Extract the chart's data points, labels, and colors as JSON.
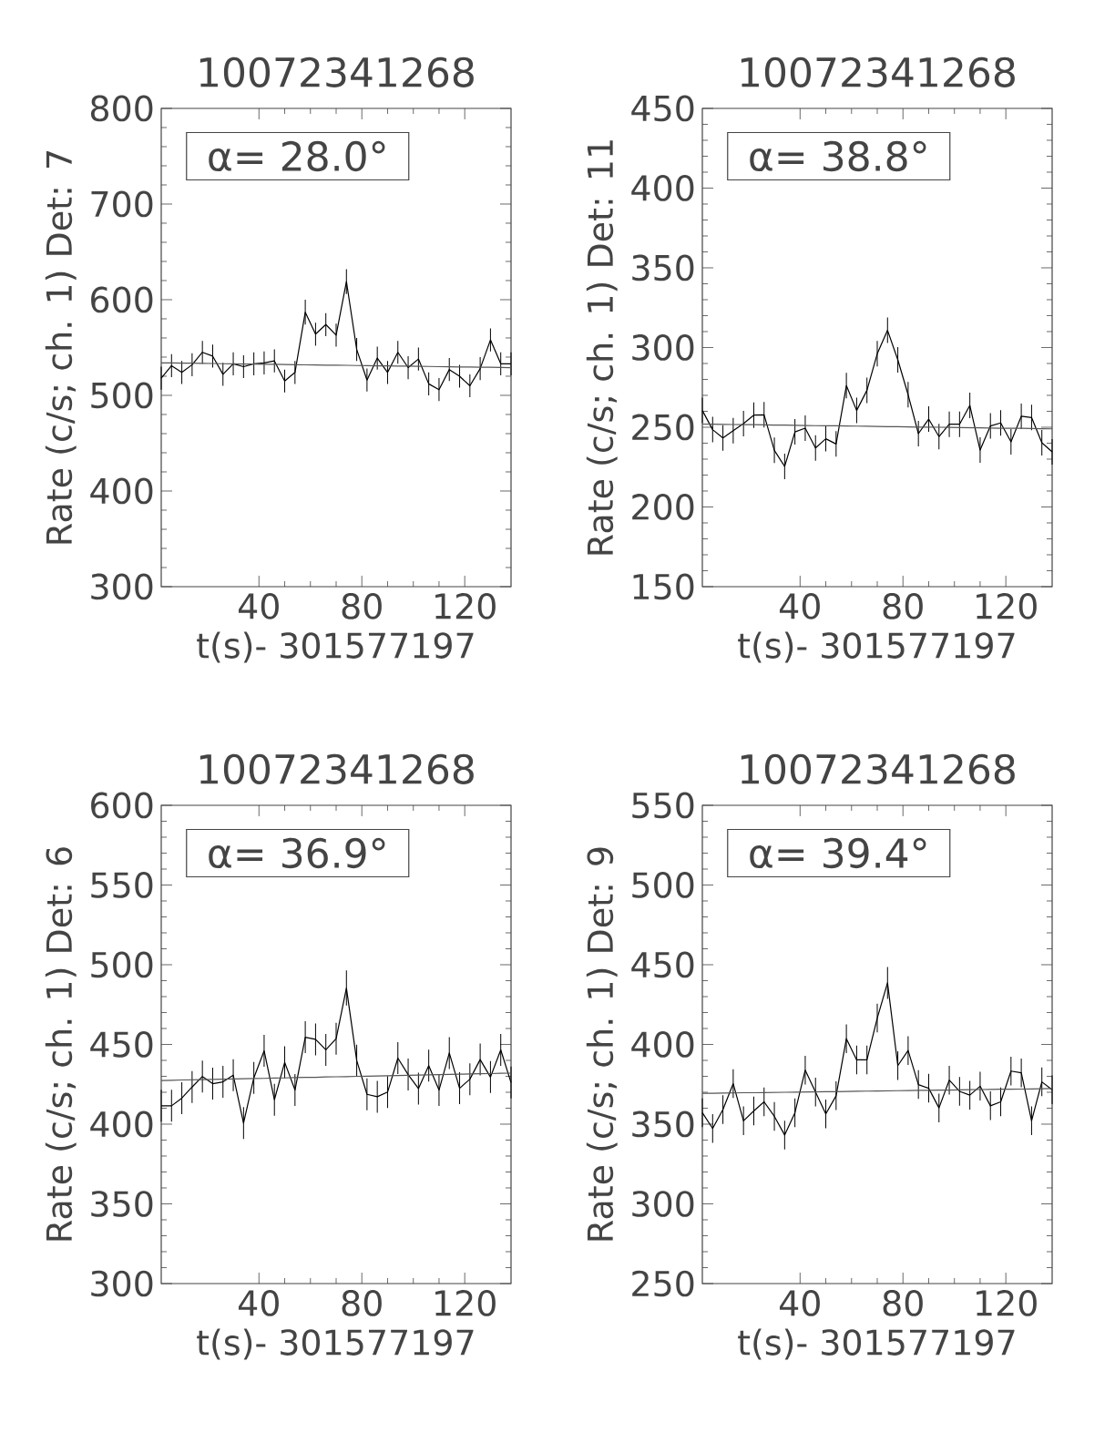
{
  "chart_data": [
    {
      "type": "line",
      "title": "10072341268",
      "xlabel": "t(s)- 301577197",
      "ylabel": "Rate (c/s; ch. 1) Det: 7",
      "annotations": [
        "α= 28.0°"
      ],
      "xlim": [
        2,
        138
      ],
      "xticks": [
        40,
        80,
        120
      ],
      "ylim": [
        300,
        800
      ],
      "yticks": [
        300,
        400,
        500,
        600,
        700,
        800
      ],
      "x": [
        2,
        6,
        10,
        14,
        18,
        22,
        26,
        30,
        34,
        38,
        42,
        46,
        50,
        54,
        58,
        62,
        66,
        70,
        74,
        78,
        82,
        86,
        90,
        94,
        98,
        102,
        106,
        110,
        114,
        118,
        122,
        126,
        130,
        134,
        138
      ],
      "series": [
        {
          "color": "#000000",
          "values": [
            518,
            531,
            524,
            532,
            545,
            541,
            522,
            533,
            530,
            533,
            534,
            536,
            515,
            524,
            587,
            564,
            574,
            563,
            619,
            548,
            516,
            539,
            524,
            545,
            529,
            538,
            512,
            506,
            527,
            520,
            510,
            528,
            558,
            533,
            533
          ],
          "errors": [
            12,
            12,
            12,
            12,
            12,
            12,
            12,
            12,
            12,
            12,
            12,
            12,
            12,
            12,
            13,
            12,
            12,
            12,
            13,
            12,
            12,
            12,
            12,
            12,
            12,
            12,
            12,
            12,
            12,
            12,
            12,
            12,
            12,
            12,
            12
          ]
        },
        {
          "color": "#555555",
          "values": [
            534.0,
            533.9,
            533.7,
            533.6,
            533.4,
            533.3,
            533.1,
            533.0,
            532.8,
            532.7,
            532.5,
            532.4,
            532.2,
            532.1,
            531.9,
            531.8,
            531.6,
            531.5,
            531.4,
            531.2,
            531.1,
            530.9,
            530.8,
            530.6,
            530.5,
            530.3,
            530.2,
            530.0,
            529.9,
            529.7,
            529.6,
            529.4,
            529.3,
            529.1,
            529.0
          ]
        }
      ]
    },
    {
      "type": "line",
      "title": "10072341268",
      "xlabel": "t(s)- 301577197",
      "ylabel": "Rate (c/s; ch. 1) Det: 11",
      "annotations": [
        "α= 38.8°"
      ],
      "xlim": [
        2,
        138
      ],
      "xticks": [
        40,
        80,
        120
      ],
      "ylim": [
        150,
        450
      ],
      "yticks": [
        150,
        200,
        250,
        300,
        350,
        400,
        450
      ],
      "x": [
        2,
        6,
        10,
        14,
        18,
        22,
        26,
        30,
        34,
        38,
        42,
        46,
        50,
        54,
        58,
        62,
        66,
        70,
        74,
        78,
        82,
        86,
        90,
        94,
        98,
        102,
        106,
        110,
        114,
        118,
        122,
        126,
        130,
        134,
        138
      ],
      "series": [
        {
          "color": "#000000",
          "values": [
            260.5,
            248.5,
            243.3,
            247.9,
            252.3,
            257.6,
            257.8,
            235.5,
            225.4,
            247.1,
            249.4,
            237,
            242.8,
            239.5,
            276.1,
            260.5,
            273.2,
            296.1,
            310.8,
            292.3,
            270.4,
            246,
            255.1,
            244.1,
            251.9,
            251.9,
            263.7,
            235.7,
            250.8,
            252.7,
            240.9,
            256.9,
            256.1,
            240.3,
            234.6
          ],
          "errors": [
            8,
            8,
            8,
            8,
            8,
            8,
            8,
            8,
            8,
            8,
            8,
            8,
            8,
            8,
            8,
            8,
            8,
            8,
            8,
            8,
            8,
            8,
            8,
            8,
            8,
            8,
            8,
            8,
            8,
            8,
            8,
            8,
            8,
            8,
            8
          ]
        },
        {
          "color": "#555555",
          "values": [
            252.0,
            251.9,
            251.8,
            251.7,
            251.6,
            251.6,
            251.5,
            251.4,
            251.3,
            251.2,
            251.1,
            251.0,
            250.9,
            250.9,
            250.8,
            250.7,
            250.6,
            250.5,
            250.4,
            250.3,
            250.2,
            250.1,
            250.1,
            250.0,
            249.9,
            249.8,
            249.7,
            249.6,
            249.5,
            249.4,
            249.4,
            249.3,
            249.2,
            249.1,
            249.0
          ]
        }
      ]
    },
    {
      "type": "line",
      "title": "10072341268",
      "xlabel": "t(s)- 301577197",
      "ylabel": "Rate (c/s; ch. 1) Det: 6",
      "annotations": [
        "α= 36.9°"
      ],
      "xlim": [
        2,
        138
      ],
      "xticks": [
        40,
        80,
        120
      ],
      "ylim": [
        300,
        600
      ],
      "yticks": [
        300,
        350,
        400,
        450,
        500,
        550,
        600
      ],
      "x": [
        2,
        6,
        10,
        14,
        18,
        22,
        26,
        30,
        34,
        38,
        42,
        46,
        50,
        54,
        58,
        62,
        66,
        70,
        74,
        78,
        82,
        86,
        90,
        94,
        98,
        102,
        106,
        110,
        114,
        118,
        122,
        126,
        130,
        134,
        138
      ],
      "series": [
        {
          "color": "#000000",
          "values": [
            411.5,
            411.5,
            416.3,
            423.3,
            429.9,
            425.4,
            426.5,
            430.7,
            400.7,
            429,
            446,
            415.3,
            438.8,
            421.4,
            454.5,
            453.2,
            446.6,
            453.6,
            485.4,
            439.9,
            418.7,
            417.2,
            420.1,
            441.4,
            431.1,
            422.3,
            436.7,
            421.4,
            444.6,
            422.5,
            428.2,
            440.5,
            429.5,
            446.6,
            426.1
          ],
          "errors": [
            10,
            10,
            10,
            10,
            10,
            10,
            10,
            10,
            10,
            10,
            10,
            10,
            10,
            10,
            10,
            10,
            10,
            10,
            11,
            10,
            10,
            10,
            10,
            10,
            10,
            10,
            10,
            10,
            10,
            10,
            10,
            10,
            10,
            10,
            10
          ]
        },
        {
          "color": "#555555",
          "values": [
            427.4,
            427.5,
            427.7,
            427.8,
            427.9,
            428.1,
            428.2,
            428.3,
            428.5,
            428.6,
            428.7,
            428.9,
            429.0,
            429.2,
            429.3,
            429.4,
            429.6,
            429.7,
            429.8,
            430.0,
            430.1,
            430.2,
            430.4,
            430.5,
            430.6,
            430.8,
            430.9,
            431.1,
            431.2,
            431.3,
            431.5,
            431.6,
            431.7,
            431.9,
            432.0
          ]
        }
      ]
    },
    {
      "type": "line",
      "title": "10072341268",
      "xlabel": "t(s)- 301577197",
      "ylabel": "Rate (c/s; ch. 1) Det: 9",
      "annotations": [
        "α= 39.4°"
      ],
      "xlim": [
        2,
        138
      ],
      "xticks": [
        40,
        80,
        120
      ],
      "ylim": [
        250,
        550
      ],
      "yticks": [
        250,
        300,
        350,
        400,
        450,
        500,
        550
      ],
      "x": [
        2,
        6,
        10,
        14,
        18,
        22,
        26,
        30,
        34,
        38,
        42,
        46,
        50,
        54,
        58,
        62,
        66,
        70,
        74,
        78,
        82,
        86,
        90,
        94,
        98,
        102,
        106,
        110,
        114,
        118,
        122,
        126,
        130,
        134,
        138
      ],
      "series": [
        {
          "color": "#000000",
          "values": [
            357.2,
            347.3,
            359.1,
            375.4,
            352.1,
            358.3,
            364,
            354.9,
            343.2,
            357.2,
            383.9,
            370.1,
            356.4,
            367.8,
            403.6,
            390.3,
            390.3,
            416.5,
            438.6,
            386.7,
            396.2,
            374.8,
            372.5,
            360.2,
            377.6,
            370.6,
            368.2,
            373.8,
            361.5,
            364,
            383.3,
            382.2,
            352.1,
            376.5,
            371.6
          ],
          "errors": [
            9,
            9,
            9,
            9,
            9,
            9,
            9,
            9,
            9,
            9,
            9,
            9,
            9,
            9,
            9,
            9,
            9,
            9,
            10,
            9,
            9,
            9,
            9,
            9,
            9,
            9,
            9,
            9,
            9,
            9,
            9,
            9,
            9,
            9,
            9
          ]
        },
        {
          "color": "#555555",
          "values": [
            369.3,
            369.4,
            369.5,
            369.6,
            369.7,
            369.7,
            369.8,
            369.9,
            370.0,
            370.1,
            370.2,
            370.3,
            370.4,
            370.4,
            370.5,
            370.6,
            370.7,
            370.8,
            370.9,
            371.0,
            371.1,
            371.2,
            371.2,
            371.3,
            371.4,
            371.5,
            371.6,
            371.7,
            371.8,
            371.9,
            371.9,
            372.0,
            372.1,
            372.2,
            372.3
          ]
        }
      ]
    }
  ]
}
